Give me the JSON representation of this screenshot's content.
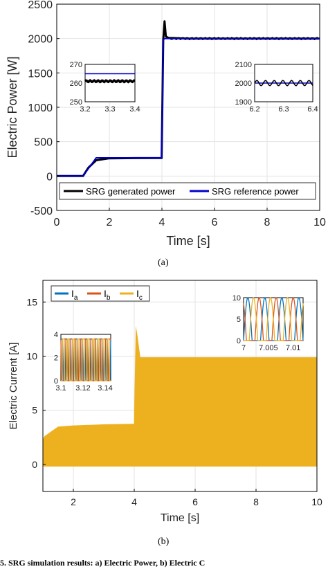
{
  "figure_a_caption": "(a)",
  "figure_b_caption": "(b)",
  "footer_text": "5. SRG simulation results: a) Electric Power, b) Electric C",
  "colors": {
    "black": "#000000",
    "blue": "#0000cc",
    "ia": "#0072bd",
    "ib": "#d95319",
    "ic": "#edb120"
  },
  "chart_data": [
    {
      "type": "line",
      "xlabel": "Time [s]",
      "ylabel": "Electric Power [W]",
      "xlim": [
        0,
        10
      ],
      "ylim": [
        -500,
        2500
      ],
      "xticks": [
        "0",
        "2",
        "4",
        "6",
        "8",
        "10"
      ],
      "yticks": [
        "-500",
        "0",
        "500",
        "1000",
        "1500",
        "2000",
        "2500"
      ],
      "grid": true,
      "legend": "bottom",
      "series": [
        {
          "name": "SRG generated power",
          "color": "#000000",
          "x": [
            0,
            1.0,
            1.2,
            1.5,
            2.0,
            3.0,
            3.99,
            4.05,
            4.1,
            4.15,
            4.25,
            5,
            7,
            10
          ],
          "y": [
            0,
            0,
            120,
            230,
            258,
            261,
            262,
            1980,
            2250,
            2030,
            2010,
            2000,
            2000,
            2000
          ]
        },
        {
          "name": "SRG reference power",
          "color": "#0000cc",
          "x": [
            0,
            1.0,
            1.5,
            3.99,
            4.05,
            4.1,
            10
          ],
          "y": [
            0,
            0,
            265,
            265,
            1980,
            2000,
            2000
          ]
        }
      ],
      "insets": [
        {
          "position": "left",
          "xlim": [
            3.2,
            3.4
          ],
          "ylim": [
            250,
            270
          ],
          "xticks": [
            "3.2",
            "3.3",
            "3.4"
          ],
          "yticks": [
            "250",
            "260",
            "270"
          ],
          "reference": 265,
          "generated": 261
        },
        {
          "position": "right",
          "xlim": [
            6.2,
            6.4
          ],
          "ylim": [
            1900,
            2100
          ],
          "xticks": [
            "6.2",
            "6.3",
            "6.4"
          ],
          "yticks": [
            "1900",
            "2000",
            "2100"
          ],
          "reference": 2000,
          "generated": 2000
        }
      ]
    },
    {
      "type": "line",
      "xlabel": "Time [s]",
      "ylabel": "Electric Current [A]",
      "xlim": [
        1,
        10
      ],
      "ylim": [
        -2.5,
        17
      ],
      "xticks": [
        "2",
        "4",
        "6",
        "8",
        "10"
      ],
      "yticks": [
        "0",
        "5",
        "10",
        "15"
      ],
      "grid": true,
      "legend": "top-left",
      "series": [
        {
          "name": "I_a",
          "label_main": "I",
          "label_sub": "a",
          "color": "#0072bd"
        },
        {
          "name": "I_b",
          "label_main": "I",
          "label_sub": "b",
          "color": "#d95319"
        },
        {
          "name": "I_c",
          "label_main": "I",
          "label_sub": "c",
          "color": "#edb120"
        }
      ],
      "envelope": {
        "x": [
          1.0,
          1.05,
          1.3,
          1.5,
          2.0,
          3.0,
          3.99,
          4.05,
          4.1,
          4.2,
          10
        ],
        "upper": [
          2.3,
          2.6,
          3.1,
          3.5,
          3.6,
          3.7,
          3.75,
          12.8,
          12.0,
          9.9,
          9.9
        ],
        "lower": [
          -0.2,
          -0.2,
          -0.2,
          -0.2,
          -0.2,
          -0.2,
          -0.2,
          -0.2,
          -0.2,
          -0.2,
          -0.2
        ]
      },
      "insets": [
        {
          "position": "left",
          "xlim": [
            3.1,
            3.145
          ],
          "ylim": [
            0,
            4
          ],
          "xticks": [
            "3.1",
            "3.12",
            "3.14"
          ],
          "yticks": [
            "0",
            "2",
            "4"
          ],
          "peak": 3.6
        },
        {
          "position": "right",
          "xlim": [
            7,
            7.012
          ],
          "ylim": [
            0,
            10
          ],
          "xticks": [
            "7",
            "7.005",
            "7.01"
          ],
          "yticks": [
            "0",
            "5",
            "10"
          ],
          "peak": 10
        }
      ]
    }
  ]
}
